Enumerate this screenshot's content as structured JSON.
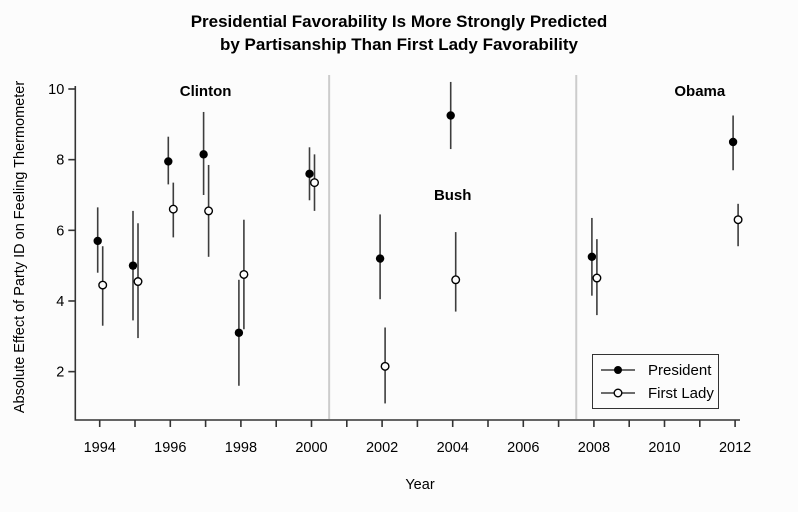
{
  "title": {
    "line1": "Presidential Favorability Is More Strongly Predicted",
    "line2": "by Partisanship Than First Lady Favorability"
  },
  "chart_data": {
    "type": "scatter",
    "title": "Presidential Favorability Is More Strongly Predicted by Partisanship Than First Lady Favorability",
    "xlabel": "Year",
    "ylabel": "Absolute Effect of Party ID on Feeling Thermometer",
    "xlim": [
      1993.3,
      2012.6
    ],
    "ylim": [
      1,
      10.3
    ],
    "y_ticks": [
      2,
      4,
      6,
      8,
      10
    ],
    "x_ticks_labeled": [
      1994,
      1996,
      1998,
      2000,
      2002,
      2004,
      2006,
      2008,
      2010,
      2012
    ],
    "x_ticks_minor_every_year": [
      1994,
      1995,
      1996,
      1997,
      1998,
      1999,
      2000,
      2001,
      2002,
      2003,
      2004,
      2005,
      2006,
      2007,
      2008,
      2009,
      2010,
      2011,
      2012
    ],
    "grid": "off",
    "legend_position": "bottom-right-inside",
    "era_dividers_year": [
      2000.5,
      2007.5
    ],
    "era_labels": [
      {
        "label": "Clinton",
        "year": 1997.0,
        "value": 9.95
      },
      {
        "label": "Bush",
        "year": 2004.0,
        "value": 7.0
      },
      {
        "label": "Obama",
        "year": 2011.0,
        "value": 9.95
      }
    ],
    "series": [
      {
        "name": "President",
        "marker": "filled-circle",
        "points": [
          {
            "year": 1994,
            "value": 5.7,
            "ci_low": 4.8,
            "ci_high": 6.65
          },
          {
            "year": 1995,
            "value": 5.0,
            "ci_low": 3.45,
            "ci_high": 6.55
          },
          {
            "year": 1996,
            "value": 7.95,
            "ci_low": 7.3,
            "ci_high": 8.65
          },
          {
            "year": 1997,
            "value": 8.15,
            "ci_low": 7.0,
            "ci_high": 9.35
          },
          {
            "year": 1998,
            "value": 3.1,
            "ci_low": 1.6,
            "ci_high": 4.6
          },
          {
            "year": 2000,
            "value": 7.6,
            "ci_low": 6.85,
            "ci_high": 8.35
          },
          {
            "year": 2002,
            "value": 5.2,
            "ci_low": 4.05,
            "ci_high": 6.45
          },
          {
            "year": 2004,
            "value": 9.25,
            "ci_low": 8.3,
            "ci_high": 10.2
          },
          {
            "year": 2008,
            "value": 5.25,
            "ci_low": 4.15,
            "ci_high": 6.35
          },
          {
            "year": 2012,
            "value": 8.5,
            "ci_low": 7.7,
            "ci_high": 9.25
          }
        ]
      },
      {
        "name": "First Lady",
        "marker": "open-circle",
        "points": [
          {
            "year": 1994,
            "value": 4.45,
            "ci_low": 3.3,
            "ci_high": 5.55
          },
          {
            "year": 1995,
            "value": 4.55,
            "ci_low": 2.95,
            "ci_high": 6.2
          },
          {
            "year": 1996,
            "value": 6.6,
            "ci_low": 5.8,
            "ci_high": 7.35
          },
          {
            "year": 1997,
            "value": 6.55,
            "ci_low": 5.25,
            "ci_high": 7.85
          },
          {
            "year": 1998,
            "value": 4.75,
            "ci_low": 3.2,
            "ci_high": 6.3
          },
          {
            "year": 2000,
            "value": 7.35,
            "ci_low": 6.55,
            "ci_high": 8.15
          },
          {
            "year": 2002,
            "value": 2.15,
            "ci_low": 1.1,
            "ci_high": 3.25
          },
          {
            "year": 2004,
            "value": 4.6,
            "ci_low": 3.7,
            "ci_high": 5.95
          },
          {
            "year": 2008,
            "value": 4.65,
            "ci_low": 3.6,
            "ci_high": 5.75
          },
          {
            "year": 2012,
            "value": 6.3,
            "ci_low": 5.55,
            "ci_high": 6.75
          }
        ]
      }
    ],
    "colors": {
      "marker": "#000000",
      "error_bar": "#3d3d3d",
      "divider": "#cccccc",
      "axis": "#333333"
    }
  },
  "legend": {
    "items": [
      {
        "label": "President",
        "marker": "filled-circle"
      },
      {
        "label": "First Lady",
        "marker": "open-circle"
      }
    ]
  }
}
